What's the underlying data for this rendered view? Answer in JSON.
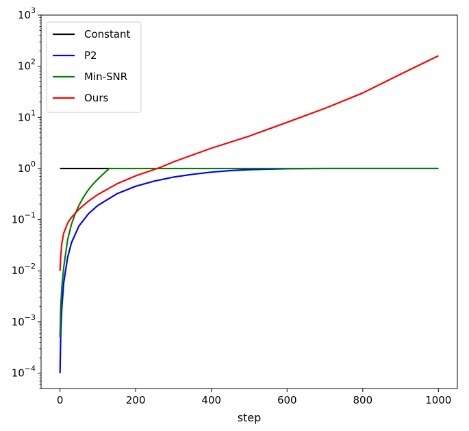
{
  "chart_data": {
    "type": "line",
    "title": "",
    "xlabel": "step",
    "ylabel": "",
    "xscale": "linear",
    "yscale": "log",
    "xlim": [
      -50,
      1050
    ],
    "ylim": [
      5e-05,
      1000
    ],
    "xticks": [
      0,
      200,
      400,
      600,
      800,
      1000
    ],
    "xtick_labels": [
      "0",
      "200",
      "400",
      "600",
      "800",
      "1000"
    ],
    "yticks": [
      0.0001,
      0.001,
      0.01,
      0.1,
      1,
      10,
      100,
      1000
    ],
    "ytick_labels": [
      {
        "base": "10",
        "exp": "−4"
      },
      {
        "base": "10",
        "exp": "−3"
      },
      {
        "base": "10",
        "exp": "−2"
      },
      {
        "base": "10",
        "exp": "−1"
      },
      {
        "base": "10",
        "exp": "0"
      },
      {
        "base": "10",
        "exp": "1"
      },
      {
        "base": "10",
        "exp": "2"
      },
      {
        "base": "10",
        "exp": "3"
      }
    ],
    "grid": false,
    "legend": "top-left",
    "series": [
      {
        "name": "Constant",
        "color": "#000000",
        "x": [
          0,
          130
        ],
        "y": [
          1,
          1
        ]
      },
      {
        "name": "P2",
        "color": "#0000ff",
        "x": [
          0,
          2,
          5,
          10,
          20,
          30,
          50,
          75,
          100,
          150,
          200,
          250,
          300,
          350,
          400,
          450,
          500,
          550,
          600,
          700,
          800,
          900,
          1000
        ],
        "y": [
          0.0001,
          0.0006,
          0.002,
          0.006,
          0.018,
          0.035,
          0.075,
          0.13,
          0.19,
          0.32,
          0.45,
          0.57,
          0.68,
          0.77,
          0.85,
          0.91,
          0.95,
          0.97,
          0.99,
          1,
          1,
          1,
          1
        ]
      },
      {
        "name": "Min-SNR",
        "color": "#008000",
        "x": [
          0,
          2,
          5,
          10,
          20,
          30,
          40,
          50,
          60,
          70,
          80,
          90,
          100,
          110,
          120,
          130,
          200,
          400,
          600,
          800,
          1000
        ],
        "y": [
          0.0005,
          0.002,
          0.005,
          0.012,
          0.04,
          0.08,
          0.13,
          0.19,
          0.26,
          0.34,
          0.43,
          0.52,
          0.62,
          0.73,
          0.86,
          1,
          1,
          1,
          1,
          1,
          1
        ]
      },
      {
        "name": "Ours",
        "color": "#ff0000",
        "x": [
          0,
          2,
          5,
          10,
          20,
          30,
          50,
          75,
          100,
          150,
          200,
          265,
          300,
          400,
          500,
          600,
          700,
          800,
          900,
          1000
        ],
        "y": [
          0.01,
          0.02,
          0.035,
          0.055,
          0.085,
          0.11,
          0.16,
          0.23,
          0.31,
          0.5,
          0.72,
          1.05,
          1.35,
          2.5,
          4.3,
          8,
          15,
          30,
          70,
          160
        ]
      }
    ]
  }
}
